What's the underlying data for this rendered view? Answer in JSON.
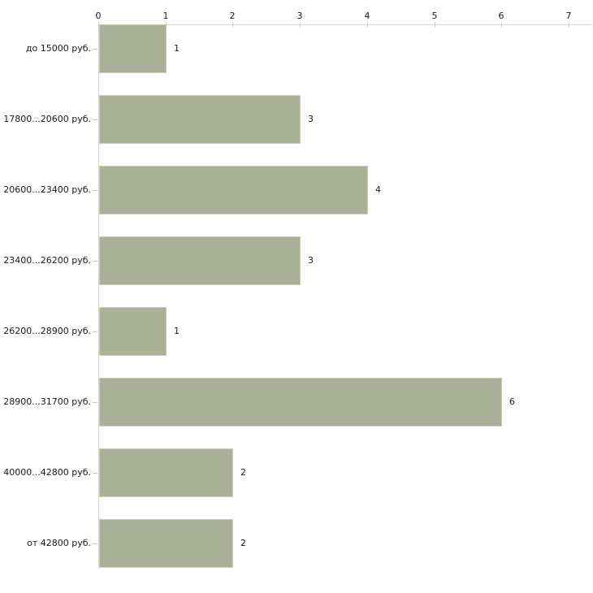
{
  "chart_data": {
    "type": "bar",
    "orientation": "horizontal",
    "title": "",
    "xlabel": "",
    "ylabel": "",
    "categories": [
      "до 15000 руб.",
      "17800...20600 руб.",
      "20600...23400 руб.",
      "23400...26200 руб.",
      "26200...28900 руб.",
      "28900...31700 руб.",
      "40000...42800 руб.",
      "от 42800 руб."
    ],
    "values": [
      1,
      3,
      4,
      3,
      1,
      6,
      2,
      2
    ],
    "value_labels": [
      "1",
      "3",
      "4",
      "3",
      "1",
      "6",
      "2",
      "2"
    ],
    "x_ticks": [
      "0",
      "1",
      "2",
      "3",
      "4",
      "5",
      "6",
      "7"
    ],
    "xlim": [
      0,
      7
    ],
    "grid": false,
    "legend": false,
    "colors": {
      "bar_fill": "#abb199",
      "bar_border": "#c9ceb7",
      "axis_line": "#d9d9d3",
      "tick_mark": "#d2cfae",
      "text": "#1a1a1a",
      "background": "#ffffff"
    }
  }
}
